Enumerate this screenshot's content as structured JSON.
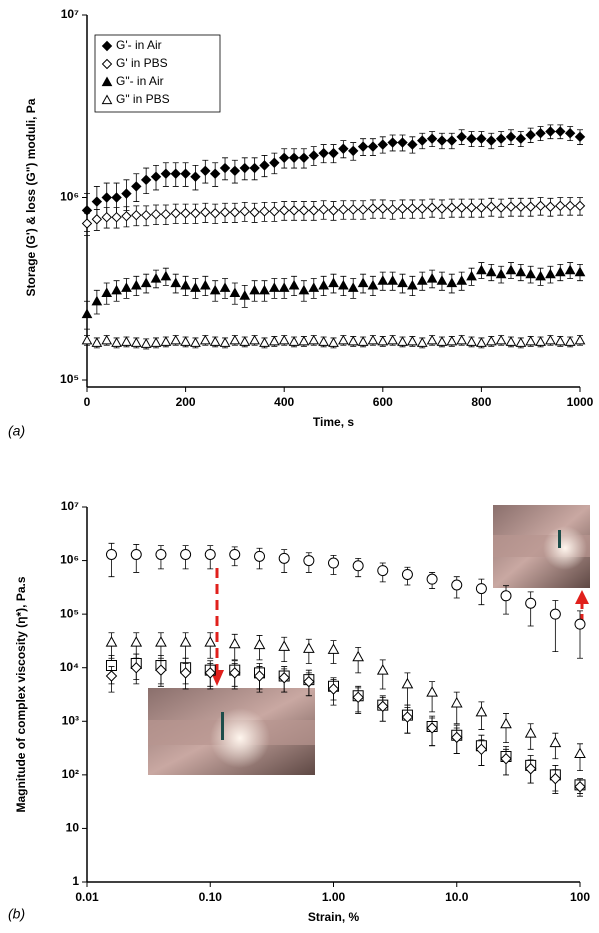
{
  "chart_data": [
    {
      "type": "scatter",
      "panel_label": "(a)",
      "x_label": "Time, s",
      "y_label": "Storage (G') & loss (G\") moduli, Pa",
      "yscale": "log",
      "xlim": [
        0,
        1000
      ],
      "xticks": [
        0,
        200,
        400,
        600,
        800,
        1000
      ],
      "ylim": [
        100000,
        10000000
      ],
      "yticks": [
        {
          "value": 100000,
          "label": "10⁵"
        },
        {
          "value": 1000000,
          "label": "10⁶"
        },
        {
          "value": 10000000,
          "label": "10⁷"
        }
      ],
      "legend": "upper left",
      "x": [
        0,
        20,
        40,
        60,
        80,
        100,
        120,
        140,
        160,
        180,
        200,
        220,
        240,
        260,
        280,
        300,
        320,
        340,
        360,
        380,
        400,
        420,
        440,
        460,
        480,
        500,
        520,
        540,
        560,
        580,
        600,
        620,
        640,
        660,
        680,
        700,
        720,
        740,
        760,
        780,
        800,
        820,
        840,
        860,
        880,
        900,
        920,
        940,
        960,
        980,
        1000
      ],
      "series": [
        {
          "name": "G'- in Air",
          "color": "#000000",
          "marker": "diamond",
          "filled": true,
          "error": 200000,
          "values": [
            850000,
            950000,
            1000000,
            1000000,
            1050000,
            1150000,
            1250000,
            1300000,
            1350000,
            1350000,
            1350000,
            1300000,
            1400000,
            1350000,
            1450000,
            1400000,
            1450000,
            1450000,
            1500000,
            1550000,
            1650000,
            1650000,
            1650000,
            1700000,
            1750000,
            1750000,
            1850000,
            1800000,
            1900000,
            1900000,
            1950000,
            2000000,
            2000000,
            1950000,
            2050000,
            2100000,
            2050000,
            2050000,
            2150000,
            2100000,
            2100000,
            2050000,
            2100000,
            2150000,
            2100000,
            2200000,
            2250000,
            2300000,
            2300000,
            2250000,
            2150000
          ]
        },
        {
          "name": "G' in PBS",
          "color": "#000000",
          "marker": "diamond",
          "filled": false,
          "error": 100000,
          "values": [
            720000,
            760000,
            780000,
            780000,
            790000,
            800000,
            800000,
            810000,
            810000,
            820000,
            820000,
            820000,
            830000,
            820000,
            830000,
            830000,
            840000,
            830000,
            840000,
            840000,
            850000,
            850000,
            850000,
            850000,
            860000,
            850000,
            860000,
            860000,
            860000,
            870000,
            870000,
            860000,
            870000,
            870000,
            870000,
            880000,
            870000,
            880000,
            880000,
            880000,
            880000,
            890000,
            880000,
            890000,
            890000,
            890000,
            900000,
            890000,
            900000,
            900000,
            900000
          ]
        },
        {
          "name": "G\"- in Air",
          "color": "#000000",
          "marker": "triangle",
          "filled": true,
          "error": 40000,
          "values": [
            230000,
            270000,
            300000,
            310000,
            320000,
            330000,
            340000,
            360000,
            370000,
            340000,
            330000,
            320000,
            330000,
            310000,
            320000,
            300000,
            290000,
            310000,
            310000,
            320000,
            320000,
            330000,
            310000,
            320000,
            330000,
            340000,
            330000,
            320000,
            340000,
            330000,
            350000,
            350000,
            340000,
            330000,
            350000,
            360000,
            350000,
            340000,
            350000,
            370000,
            400000,
            390000,
            380000,
            400000,
            390000,
            380000,
            370000,
            380000,
            390000,
            400000,
            390000
          ]
        },
        {
          "name": "G\" in PBS",
          "color": "#000000",
          "marker": "triangle",
          "filled": false,
          "error": 10000,
          "values": [
            165000,
            160000,
            165000,
            160000,
            162000,
            160000,
            158000,
            160000,
            162000,
            165000,
            162000,
            160000,
            165000,
            162000,
            160000,
            165000,
            162000,
            165000,
            160000,
            163000,
            165000,
            162000,
            163000,
            165000,
            162000,
            160000,
            165000,
            163000,
            162000,
            165000,
            163000,
            165000,
            162000,
            163000,
            160000,
            165000,
            162000,
            163000,
            165000,
            162000,
            160000,
            163000,
            165000,
            162000,
            160000,
            163000,
            162000,
            165000,
            163000,
            162000,
            165000
          ]
        }
      ]
    },
    {
      "type": "scatter",
      "panel_label": "(b)",
      "x_label": "Strain, %",
      "y_label": "Magnitude of complex viscosity (η*), Pa.s",
      "xscale": "log",
      "yscale": "log",
      "xlim": [
        0.01,
        100
      ],
      "xticks": [
        0.01,
        {
          "value": 0.1,
          "label": "0.10"
        },
        {
          "value": 1,
          "label": "1.00"
        },
        {
          "value": 10,
          "label": "10.0"
        },
        100
      ],
      "ylim": [
        1,
        10000000
      ],
      "yticks": [
        1,
        10,
        {
          "value": 100,
          "label": "10²"
        },
        {
          "value": 1000,
          "label": "10³"
        },
        {
          "value": 10000,
          "label": "10⁴"
        },
        {
          "value": 100000,
          "label": "10⁵"
        },
        {
          "value": 1000000,
          "label": "10⁶"
        },
        {
          "value": 10000000,
          "label": "10⁷"
        }
      ],
      "x": [
        0.0158,
        0.0251,
        0.0398,
        0.0631,
        0.1,
        0.158,
        0.251,
        0.398,
        0.631,
        1,
        1.585,
        2.51,
        3.98,
        6.31,
        10,
        15.85,
        25.1,
        39.8,
        63.1,
        100
      ],
      "series": [
        {
          "color": "#000000",
          "marker": "circle",
          "filled": false,
          "values": [
            1300000,
            1300000,
            1300000,
            1300000,
            1300000,
            1300000,
            1200000,
            1100000,
            1000000,
            900000,
            800000,
            650000,
            550000,
            450000,
            350000,
            300000,
            220000,
            160000,
            100000,
            65000
          ],
          "errors": [
            800000,
            700000,
            600000,
            600000,
            600000,
            500000,
            500000,
            500000,
            400000,
            350000,
            300000,
            250000,
            200000,
            150000,
            150000,
            150000,
            120000,
            100000,
            80000,
            50000
          ]
        },
        {
          "color": "#000000",
          "marker": "triangle",
          "filled": false,
          "values": [
            30000,
            30000,
            30000,
            30000,
            30000,
            28000,
            27000,
            25000,
            23000,
            22000,
            16000,
            9000,
            5000,
            3500,
            2200,
            1500,
            900,
            600,
            400,
            250
          ],
          "errors": [
            15000,
            15000,
            15000,
            15000,
            15000,
            14000,
            13000,
            12000,
            11000,
            10000,
            8000,
            5000,
            3000,
            2000,
            1300,
            800,
            500,
            300,
            200,
            130
          ]
        },
        {
          "color": "#000000",
          "marker": "square",
          "filled": false,
          "values": [
            11000,
            12000,
            11000,
            10000,
            9000,
            9000,
            8000,
            7000,
            6000,
            4500,
            3000,
            2000,
            1300,
            800,
            550,
            350,
            220,
            150,
            100,
            65
          ],
          "errors": [
            6000,
            6000,
            6000,
            5000,
            4500,
            4500,
            4000,
            3500,
            3000,
            2000,
            1500,
            1000,
            700,
            450,
            300,
            200,
            120,
            80,
            50,
            20
          ]
        },
        {
          "color": "#000000",
          "marker": "diamond",
          "filled": false,
          "values": [
            7000,
            10000,
            9000,
            8000,
            8000,
            8000,
            7000,
            6500,
            5500,
            4000,
            2800,
            1900,
            1200,
            750,
            500,
            300,
            200,
            130,
            85,
            60
          ],
          "errors": [
            3500,
            5000,
            4500,
            4000,
            4000,
            4000,
            3500,
            3000,
            2500,
            2000,
            1400,
            900,
            600,
            400,
            250,
            150,
            100,
            60,
            40,
            20
          ]
        }
      ]
    }
  ]
}
